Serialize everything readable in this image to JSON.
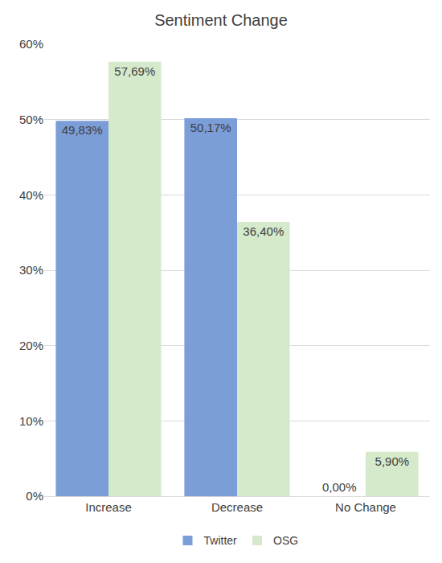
{
  "chart_data": {
    "type": "bar",
    "title": "Sentiment Change",
    "categories": [
      "Increase",
      "Decrease",
      "No Change"
    ],
    "series": [
      {
        "name": "Twitter",
        "color": "#7b9dd8",
        "values": [
          49.83,
          50.17,
          0.0
        ],
        "value_labels": [
          "49,83%",
          "50,17%",
          "0,00%"
        ]
      },
      {
        "name": "OSG",
        "color": "#d5e9cb",
        "values": [
          57.69,
          36.4,
          5.9
        ],
        "value_labels": [
          "57,69%",
          "36,40%",
          "5,90%"
        ]
      }
    ],
    "ylim": [
      0,
      60
    ],
    "yticks": [
      {
        "value": 0,
        "label": "0%"
      },
      {
        "value": 10,
        "label": "10%"
      },
      {
        "value": 20,
        "label": "20%"
      },
      {
        "value": 30,
        "label": "30%"
      },
      {
        "value": 40,
        "label": "40%"
      },
      {
        "value": 50,
        "label": "50%"
      },
      {
        "value": 60,
        "label": "60%"
      }
    ],
    "grid": true,
    "legend": "bottom",
    "data_labels": true
  }
}
